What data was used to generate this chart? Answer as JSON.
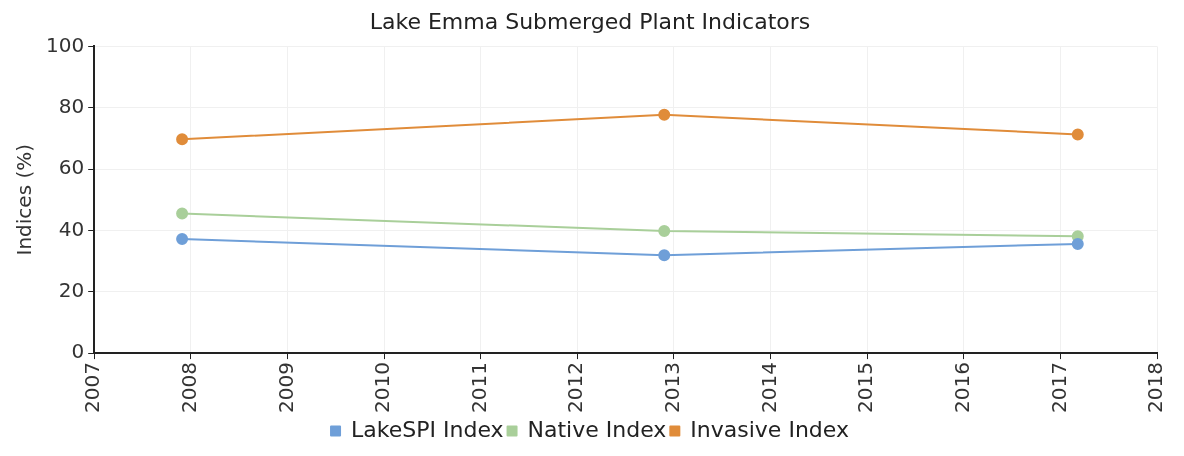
{
  "chart_data": {
    "type": "line",
    "title": "Lake Emma Submerged Plant Indicators",
    "ylabel": "Indices (%)",
    "x": [
      2007.91,
      2012.9,
      2017.18
    ],
    "series": [
      {
        "name": "LakeSPI Index",
        "color": "#6f9fd8",
        "values": [
          37.2,
          31.9,
          35.6
        ]
      },
      {
        "name": "Native Index",
        "color": "#a9cf9a",
        "values": [
          45.5,
          39.8,
          38.1
        ]
      },
      {
        "name": "Invasive Index",
        "color": "#e08c3a",
        "values": [
          69.7,
          77.7,
          71.3
        ]
      }
    ],
    "xlim": [
      2007,
      2018
    ],
    "xticks": [
      2007,
      2008,
      2009,
      2010,
      2011,
      2012,
      2013,
      2014,
      2015,
      2016,
      2017,
      2018
    ],
    "ylim": [
      0,
      100
    ],
    "yticks": [
      0,
      20,
      40,
      60,
      80,
      100
    ],
    "grid": true,
    "legend": "bottom",
    "marker": "circle",
    "line_style": "solid"
  }
}
